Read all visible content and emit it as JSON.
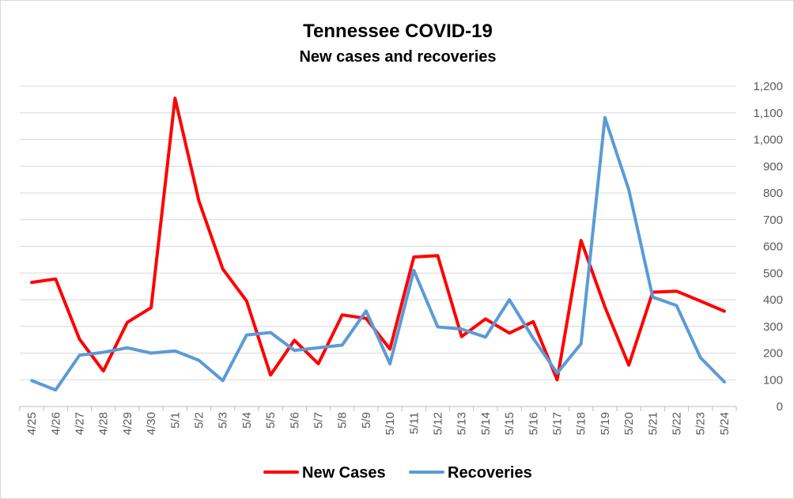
{
  "chart_data": {
    "type": "line",
    "title": "Tennessee COVID-19",
    "subtitle": "New cases and recoveries",
    "xlabel": "",
    "ylabel": "",
    "ylim": [
      0,
      1200
    ],
    "y_ticks": [
      "0",
      "100",
      "200",
      "300",
      "400",
      "500",
      "600",
      "700",
      "800",
      "900",
      "1,000",
      "1,100",
      "1,200"
    ],
    "y_axis_side": "right",
    "grid": true,
    "legend_position": "bottom",
    "categories": [
      "4/25",
      "4/26",
      "4/27",
      "4/28",
      "4/29",
      "4/30",
      "5/1",
      "5/2",
      "5/3",
      "5/4",
      "5/5",
      "5/6",
      "5/7",
      "5/8",
      "5/9",
      "5/10",
      "5/11",
      "5/12",
      "5/13",
      "5/14",
      "5/15",
      "5/16",
      "5/17",
      "5/18",
      "5/19",
      "5/20",
      "5/21",
      "5/22",
      "5/23",
      "5/24"
    ],
    "series": [
      {
        "name": "New Cases",
        "color": "#ff0000",
        "values": [
          465,
          478,
          252,
          133,
          315,
          370,
          1155,
          770,
          515,
          395,
          118,
          248,
          160,
          343,
          330,
          215,
          560,
          565,
          262,
          328,
          275,
          318,
          100,
          622,
          373,
          155,
          428,
          432,
          395,
          357
        ]
      },
      {
        "name": "Recoveries",
        "color": "#5b9bd5",
        "values": [
          97,
          62,
          192,
          203,
          220,
          200,
          208,
          173,
          97,
          268,
          277,
          210,
          220,
          230,
          358,
          160,
          510,
          298,
          290,
          260,
          400,
          255,
          125,
          235,
          1082,
          812,
          410,
          378,
          183,
          92
        ]
      }
    ]
  }
}
